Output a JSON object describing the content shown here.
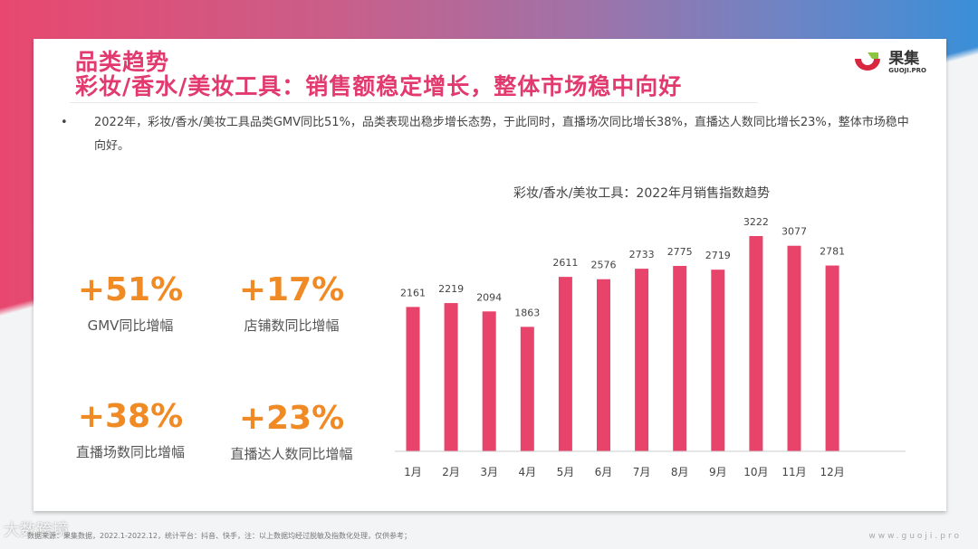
{
  "title": {
    "line1": "品类趋势",
    "line2": "彩妆/香水/美妆工具：销售额稳定增长，整体市场稳中向好"
  },
  "logo": {
    "brand": "果集",
    "sub": "GUOJI.PRO"
  },
  "bullet": "2022年，彩妆/香水/美妆工具品类GMV同比51%，品类表现出稳步增长态势，于此同时，直播场次同比增长38%，直播达人数同比增长23%，整体市场稳中向好。",
  "stats": [
    {
      "value": "+51%",
      "label": "GMV同比增幅"
    },
    {
      "value": "+17%",
      "label": "店铺数同比增幅"
    },
    {
      "value": "+38%",
      "label": "直播场数同比增幅"
    },
    {
      "value": "+23%",
      "label": "直播达人数同比增幅"
    }
  ],
  "colors": {
    "title": "#e23a6e",
    "stat": "#f08a24",
    "bar": "#e8436a"
  },
  "chart_data": {
    "type": "bar",
    "title": "彩妆/香水/美妆工具：2022年月销售指数趋势",
    "categories": [
      "1月",
      "2月",
      "3月",
      "4月",
      "5月",
      "6月",
      "7月",
      "8月",
      "9月",
      "10月",
      "11月",
      "12月"
    ],
    "values": [
      2161,
      2219,
      2094,
      1863,
      2611,
      2576,
      2733,
      2775,
      2719,
      3222,
      3077,
      2781
    ],
    "xlabel": "",
    "ylabel": "",
    "ylim": [
      0,
      3222
    ],
    "grid": false,
    "data_labels": true
  },
  "footer": "数据来源：果集数据，2022.1-2022.12，统计平台：抖音、快手，注：以上数据均经过脱敏及指数化处理，仅供参考；",
  "url": "www.guoji.pro",
  "watermark": "大数跨境"
}
